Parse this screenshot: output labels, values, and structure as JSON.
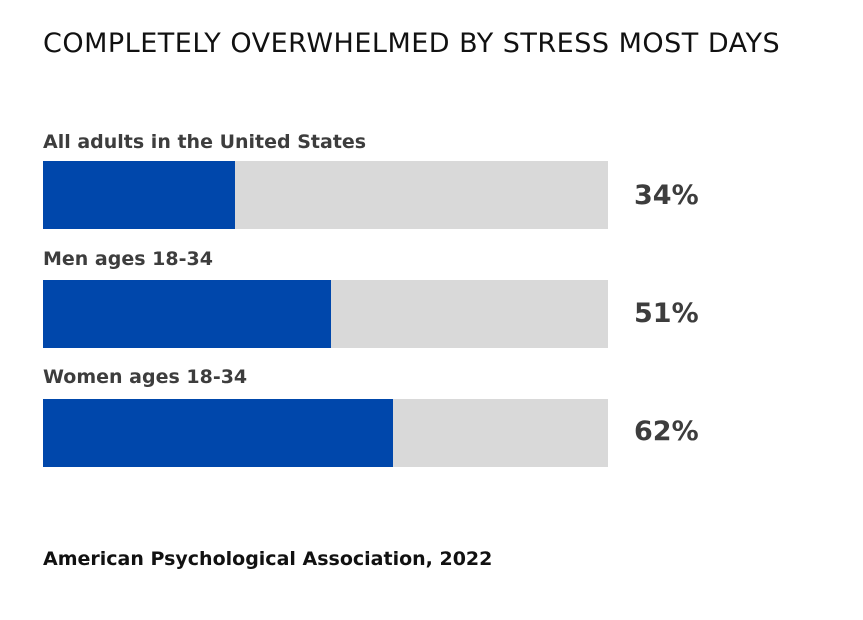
{
  "chart_data": {
    "type": "bar",
    "orientation": "horizontal",
    "title": "COMPLETELY OVERWHELMED BY STRESS MOST DAYS",
    "categories": [
      "All adults in the United States",
      "Men ages 18-34",
      "Women ages 18-34"
    ],
    "values": [
      34,
      51,
      62
    ],
    "value_labels": [
      "34%",
      "51%",
      "62%"
    ],
    "xlim": [
      0,
      100
    ],
    "grid": false,
    "legend": "none",
    "source": "American Psychological Association, 2022"
  },
  "colors": {
    "fill": "#0047ab",
    "track": "#d9d9d9",
    "label": "#3d3d3d",
    "title": "#111111"
  }
}
